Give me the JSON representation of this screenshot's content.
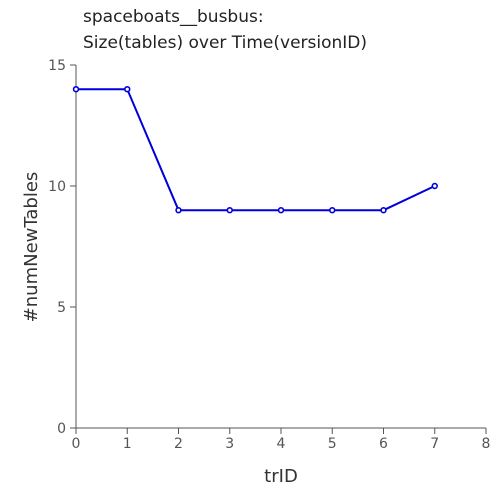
{
  "chart_data": {
    "type": "line",
    "title": [
      "spaceboats__busbus:",
      "Size(tables) over Time(versionID)"
    ],
    "xlabel": "trID",
    "ylabel": "#numNewTables",
    "xlim": [
      0,
      8
    ],
    "ylim": [
      0,
      15
    ],
    "x_ticks": [
      0,
      1,
      2,
      3,
      4,
      5,
      6,
      7,
      8
    ],
    "y_ticks": [
      0,
      5,
      10,
      15
    ],
    "grid": false,
    "series": [
      {
        "x": [
          0,
          1,
          2,
          3,
          4,
          5,
          6,
          7
        ],
        "values": [
          14,
          14,
          9,
          9,
          9,
          9,
          9,
          10
        ],
        "color": "#0000dd"
      }
    ]
  }
}
